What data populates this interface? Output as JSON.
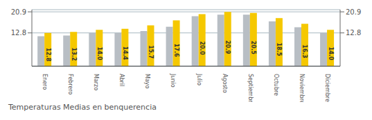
{
  "chart_data": {
    "type": "bar",
    "title": "Temperaturas Medias en benquerencia",
    "categories": [
      "Enero",
      "Febrero",
      "Marzo",
      "Abril",
      "Mayo",
      "Junio",
      "Julio",
      "Agosto",
      "Septiembre",
      "Octubre",
      "Noviembre",
      "Diciembre"
    ],
    "series": [
      {
        "color": "#B8BEC4",
        "values": [
          11.5,
          11.8,
          12.8,
          12.8,
          13.5,
          15.2,
          19.2,
          19.8,
          19.8,
          17.2,
          15.0,
          12.8
        ]
      },
      {
        "color": "#F5C800",
        "values": [
          12.8,
          13.2,
          14.0,
          14.4,
          15.7,
          17.6,
          20.0,
          20.9,
          20.5,
          18.5,
          16.3,
          14.0
        ],
        "data_labels": true,
        "value_labels": [
          "12.8",
          "13.2",
          "14.0",
          "14.4",
          "15.7",
          "17.6",
          "20.0",
          "20.9",
          "20.5",
          "18.5",
          "16.3",
          "14.0"
        ]
      }
    ],
    "ylim": [
      0,
      21.736
    ],
    "yticks": [
      12.8,
      20.9
    ],
    "y2lim": [
      0,
      21.736
    ],
    "y2ticks": [
      12.8,
      20.9
    ],
    "grid": true
  }
}
